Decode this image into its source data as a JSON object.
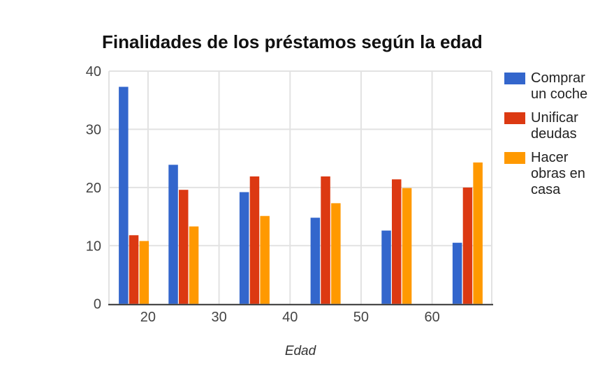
{
  "chart_data": {
    "type": "bar",
    "title": "Finalidades de los préstamos según la edad",
    "xlabel": "Edad",
    "ylabel": "",
    "x": [
      18,
      25,
      35,
      45,
      55,
      65
    ],
    "series": [
      {
        "name": "Comprar un coche",
        "legend_lines": [
          "Comprar",
          "un coche"
        ],
        "color": "#3366CC",
        "values": [
          37.3,
          23.9,
          19.2,
          14.8,
          12.6,
          10.5
        ]
      },
      {
        "name": "Unificar deudas",
        "legend_lines": [
          "Unificar",
          "deudas"
        ],
        "color": "#DC3912",
        "values": [
          11.8,
          19.6,
          21.9,
          21.9,
          21.4,
          20.0
        ]
      },
      {
        "name": "Hacer obras en casa",
        "legend_lines": [
          "Hacer",
          "obras en",
          "casa"
        ],
        "color": "#FF9900",
        "values": [
          10.8,
          13.3,
          15.1,
          17.3,
          19.9,
          24.3
        ]
      }
    ],
    "x_ticks": [
      "20",
      "30",
      "40",
      "50",
      "60"
    ],
    "y_ticks": [
      "0",
      "10",
      "20",
      "30",
      "40"
    ],
    "xlim": [
      14.5,
      68.4
    ],
    "ylim": [
      0,
      40
    ],
    "grid": true,
    "legend_position": "right"
  },
  "palette": {
    "grid": "#e2e2e2",
    "axis_line": "#333333",
    "tick_text": "#444444",
    "legend_text": "#222222",
    "title_text": "#111111",
    "background": "#ffffff"
  }
}
